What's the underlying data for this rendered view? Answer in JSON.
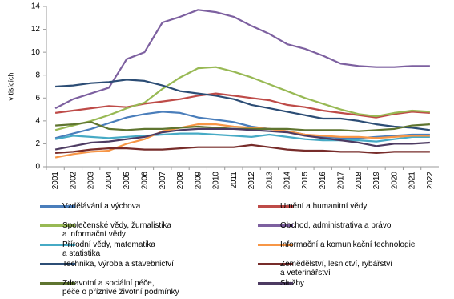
{
  "chart_data": {
    "type": "line",
    "y_label": "v tisících",
    "categories": [
      "2001",
      "2002",
      "2003",
      "2004",
      "2005",
      "2006",
      "2007",
      "2008",
      "2009",
      "2010",
      "2011",
      "2012",
      "2013",
      "2014",
      "2015",
      "2016",
      "2017",
      "2018",
      "2019",
      "2020",
      "2021",
      "2022"
    ],
    "ylim": [
      0,
      14
    ],
    "yticks": [
      0,
      2,
      4,
      6,
      8,
      10,
      12,
      14
    ],
    "grid": false,
    "series": [
      {
        "name": "Vzdělávání a výchova",
        "color": "#4a7ebb",
        "values": [
          2.5,
          2.9,
          3.3,
          3.8,
          4.3,
          4.6,
          4.8,
          4.7,
          4.3,
          4.1,
          3.9,
          3.5,
          3.3,
          3.1,
          2.8,
          2.6,
          2.5,
          2.5,
          2.6,
          2.7,
          2.8,
          2.8
        ]
      },
      {
        "name": "Umění a humanitní vědy",
        "color": "#be4b48",
        "values": [
          4.7,
          4.9,
          5.1,
          5.3,
          5.2,
          5.5,
          5.7,
          5.9,
          6.2,
          6.4,
          6.2,
          6.0,
          5.8,
          5.4,
          5.2,
          4.9,
          4.7,
          4.5,
          4.3,
          4.6,
          4.8,
          4.7
        ]
      },
      {
        "name": "Společenské vědy, žurnalistika\na informační vědy",
        "color": "#98b954",
        "values": [
          3.2,
          3.6,
          4.0,
          4.5,
          5.1,
          5.6,
          6.8,
          7.8,
          8.6,
          8.7,
          8.3,
          7.8,
          7.2,
          6.6,
          6.0,
          5.5,
          5.0,
          4.6,
          4.4,
          4.7,
          4.9,
          4.8
        ]
      },
      {
        "name": "Obchod, administrativa a právo",
        "color": "#7d60a0",
        "values": [
          5.1,
          5.9,
          6.4,
          6.9,
          9.4,
          10.0,
          12.6,
          13.1,
          13.7,
          13.5,
          13.1,
          12.3,
          11.6,
          10.7,
          10.3,
          9.7,
          9.0,
          8.8,
          8.7,
          8.7,
          8.8,
          8.8
        ]
      },
      {
        "name": "Přírodní vědy, matematika\na statistika",
        "color": "#46aac5",
        "values": [
          2.4,
          2.7,
          2.6,
          2.5,
          2.6,
          2.7,
          2.8,
          2.9,
          2.9,
          2.8,
          2.7,
          2.6,
          2.8,
          2.6,
          2.4,
          2.3,
          2.3,
          2.3,
          2.2,
          2.4,
          2.6,
          2.6
        ]
      },
      {
        "name": "Informační a komunikační technologie",
        "color": "#f79646",
        "values": [
          0.8,
          1.1,
          1.3,
          1.4,
          2.0,
          2.4,
          3.1,
          3.4,
          3.7,
          3.7,
          3.5,
          3.4,
          3.3,
          3.1,
          2.8,
          2.7,
          2.6,
          2.6,
          2.5,
          2.6,
          2.7,
          2.7
        ]
      },
      {
        "name": "Technika, výroba a stavebnictví",
        "color": "#2c4d75",
        "values": [
          7.0,
          7.1,
          7.3,
          7.4,
          7.6,
          7.5,
          7.1,
          6.6,
          6.4,
          6.2,
          5.9,
          5.4,
          5.1,
          4.8,
          4.5,
          4.2,
          4.2,
          4.0,
          3.7,
          3.5,
          3.4,
          3.2
        ]
      },
      {
        "name": "Zemědělství, lesnictví, rybářství\n a veterinářství",
        "color": "#772c2a",
        "values": [
          1.2,
          1.3,
          1.5,
          1.6,
          1.6,
          1.5,
          1.5,
          1.6,
          1.7,
          1.7,
          1.7,
          1.9,
          1.7,
          1.5,
          1.4,
          1.4,
          1.3,
          1.3,
          1.2,
          1.3,
          1.3,
          1.3
        ]
      },
      {
        "name": "Zdravotní a sociální péče,\npéče o příznivé životní podmínky",
        "color": "#5f7530",
        "values": [
          3.6,
          3.7,
          3.9,
          3.3,
          3.2,
          3.3,
          3.3,
          3.4,
          3.5,
          3.4,
          3.3,
          3.3,
          3.3,
          3.3,
          3.2,
          3.2,
          3.2,
          3.1,
          3.2,
          3.3,
          3.6,
          3.7
        ]
      },
      {
        "name": "Služby",
        "color": "#4d3b62",
        "values": [
          1.5,
          1.8,
          2.1,
          2.2,
          2.4,
          2.6,
          3.0,
          3.2,
          3.3,
          3.3,
          3.3,
          3.2,
          3.1,
          3.0,
          2.7,
          2.5,
          2.3,
          2.1,
          1.8,
          2.0,
          2.0,
          2.1
        ]
      }
    ]
  }
}
